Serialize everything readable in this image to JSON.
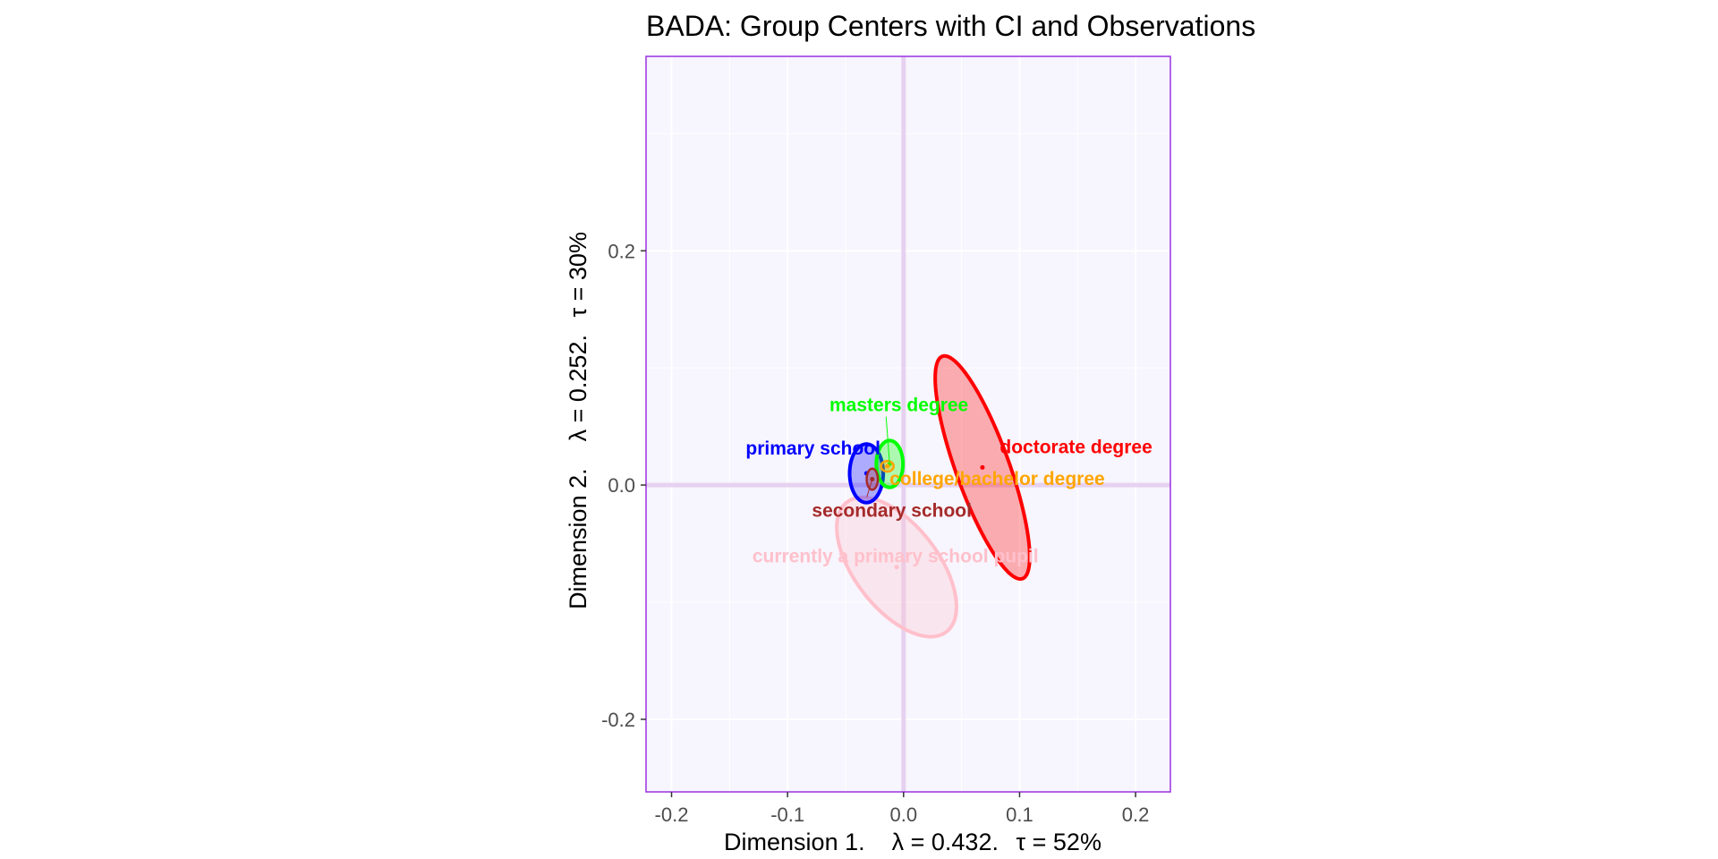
{
  "chart_data": {
    "type": "scatter",
    "title": "BADA: Group Centers with CI and Observations",
    "xlabel": {
      "prefix": "Dimension 1.   ",
      "lambda_part": "λ = 0.432.",
      "tau_part": "τ = 52%"
    },
    "ylabel": {
      "prefix": "Dimension 2.   ",
      "lambda_part": "λ = 0.252.",
      "tau_part": "τ = 30%"
    },
    "xlim": [
      -0.222,
      0.23
    ],
    "ylim": [
      -0.262,
      0.366
    ],
    "x_ticks": [
      -0.2,
      -0.1,
      0.0,
      0.1,
      0.2
    ],
    "x_tick_labels": [
      "-0.2",
      "-0.1",
      "0.0",
      "0.1",
      "0.2"
    ],
    "y_ticks": [
      -0.2,
      0.0,
      0.2
    ],
    "y_tick_labels": [
      "-0.2",
      "0.0",
      "0.2"
    ],
    "grid": true,
    "colors": {
      "panel_background": "#f7f5fd",
      "panel_border": "#9b30e0",
      "grid": "#ffffff",
      "axis_lines": "#e6d2f0"
    },
    "series": [
      {
        "name": "doctorate degree",
        "color": "#ff0000",
        "center": [
          0.068,
          0.015
        ],
        "ellipse": {
          "rx": 0.101,
          "ry": 0.023,
          "angle_deg": -70
        },
        "label": "doctorate degree"
      },
      {
        "name": "currently a primary school pupil",
        "color": "#ffc0cb",
        "center": [
          -0.006,
          -0.07
        ],
        "ellipse": {
          "rx": 0.07,
          "ry": 0.036,
          "angle_deg": -52
        },
        "label": "currently a primary school pupil"
      },
      {
        "name": "primary school",
        "color": "#0000ff",
        "center": [
          -0.032,
          0.01
        ],
        "ellipse": {
          "rx": 0.025,
          "ry": 0.0145,
          "angle_deg": 90
        },
        "label": "primary school"
      },
      {
        "name": "masters degree",
        "color": "#00ff00",
        "center": [
          -0.012,
          0.018
        ],
        "ellipse": {
          "rx": 0.02,
          "ry": 0.0115,
          "angle_deg": 90
        },
        "label": "masters degree"
      },
      {
        "name": "college/bachelor degree",
        "color": "#ffa500",
        "center": [
          -0.014,
          0.016
        ],
        "ellipse": {
          "rx": 0.0055,
          "ry": 0.0045,
          "angle_deg": 0
        },
        "label": "college/bachelor degree"
      },
      {
        "name": "secondary school",
        "color": "#a52a2a",
        "center": [
          -0.027,
          0.005
        ],
        "ellipse": {
          "rx": 0.009,
          "ry": 0.0048,
          "angle_deg": 90
        },
        "label": "secondary school"
      }
    ]
  }
}
